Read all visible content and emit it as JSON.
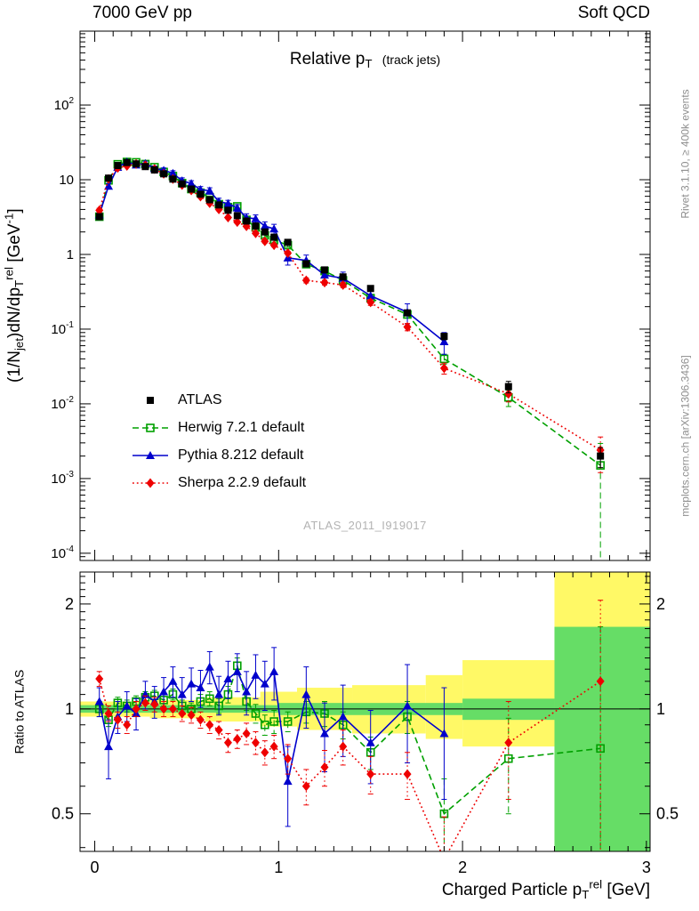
{
  "header": {
    "left": "7000 GeV pp",
    "right": "Soft QCD"
  },
  "title": {
    "text": "Relative p_{T}",
    "suffix": "(track jets)"
  },
  "axes": {
    "x_label": "Charged Particle p_{T}^{rel} [GeV]",
    "y_label_main": "(1/N_{jet})dN/dp_{T}^{rel} [GeV^{-1}]",
    "y_label_ratio": "Ratio to ATLAS"
  },
  "side_notes": {
    "top": "Rivet 3.1.10, ≥ 400k events",
    "bottom": "mcplots.cern.ch [arXiv:1306.3436]"
  },
  "watermark": "ATLAS_2011_I919017",
  "chart_data": [
    {
      "type": "scatter",
      "panel": "main",
      "title": "Relative pT (track jets)",
      "xlim": [
        -0.08,
        3.02
      ],
      "ylim": [
        8e-05,
        975
      ],
      "yscale": "log",
      "x": [
        0.025,
        0.075,
        0.125,
        0.175,
        0.225,
        0.275,
        0.325,
        0.375,
        0.425,
        0.475,
        0.525,
        0.575,
        0.625,
        0.675,
        0.725,
        0.775,
        0.825,
        0.875,
        0.925,
        0.975,
        1.05,
        1.15,
        1.25,
        1.35,
        1.5,
        1.7,
        1.9,
        2.25,
        2.75
      ],
      "series": [
        {
          "name": "ATLAS",
          "color": "#000000",
          "marker": "square-filled",
          "line": "none",
          "y": [
            3.2,
            10.5,
            15.5,
            17.0,
            16.3,
            15.0,
            13.5,
            12.0,
            10.2,
            8.8,
            7.5,
            6.4,
            5.4,
            4.6,
            3.9,
            3.3,
            2.8,
            2.4,
            2.0,
            1.7,
            1.45,
            0.75,
            0.62,
            0.5,
            0.35,
            0.165,
            0.08,
            0.017,
            0.002
          ],
          "yerr": [
            0.2,
            0.5,
            0.6,
            0.6,
            0.6,
            0.55,
            0.5,
            0.45,
            0.4,
            0.35,
            0.3,
            0.25,
            0.22,
            0.18,
            0.16,
            0.13,
            0.11,
            0.1,
            0.08,
            0.07,
            0.06,
            0.04,
            0.035,
            0.03,
            0.025,
            0.013,
            0.008,
            0.003,
            0.0006
          ]
        },
        {
          "name": "Herwig 7.2.1 default",
          "color": "#00A000",
          "marker": "square-open",
          "line": "dash",
          "y": [
            3.2,
            9.8,
            16.1,
            17.3,
            17.1,
            16.2,
            14.7,
            12.7,
            11.2,
            9.0,
            7.5,
            6.7,
            5.8,
            4.7,
            4.3,
            4.4,
            2.9,
            2.3,
            1.8,
            1.56,
            1.33,
            0.74,
            0.6,
            0.45,
            0.26,
            0.157,
            0.04,
            0.0122,
            0.0015
          ],
          "yerr": [
            0.12,
            0.35,
            0.5,
            0.55,
            0.55,
            0.5,
            0.5,
            0.45,
            0.4,
            0.35,
            0.3,
            0.3,
            0.25,
            0.22,
            0.2,
            0.22,
            0.16,
            0.13,
            0.11,
            0.1,
            0.08,
            0.05,
            0.045,
            0.035,
            0.025,
            0.015,
            0.006,
            0.003,
            0.00145
          ]
        },
        {
          "name": "Pythia 8.212 default",
          "color": "#0000CC",
          "marker": "triangle-filled",
          "line": "solid",
          "y": [
            3.4,
            8.2,
            14.7,
            17.3,
            15.8,
            16.5,
            14.2,
            13.4,
            12.2,
            9.7,
            8.9,
            7.4,
            7.1,
            5.1,
            4.8,
            4.2,
            3.1,
            3.0,
            2.4,
            2.2,
            0.9,
            0.83,
            0.53,
            0.48,
            0.28,
            0.168,
            0.068
          ],
          "yerr": [
            0.25,
            0.7,
            1.1,
            1.2,
            1.2,
            1.2,
            1.1,
            1.0,
            1.0,
            0.9,
            0.8,
            0.7,
            0.7,
            0.55,
            0.5,
            0.45,
            0.4,
            0.38,
            0.33,
            0.33,
            0.18,
            0.15,
            0.1,
            0.1,
            0.06,
            0.05,
            0.022
          ]
        },
        {
          "name": "Sherpa 2.2.9 default",
          "color": "#EE0000",
          "marker": "diamond-filled",
          "line": "dot",
          "y": [
            3.9,
            10.2,
            14.4,
            15.3,
            16.3,
            15.6,
            13.9,
            12.0,
            10.2,
            8.5,
            7.2,
            5.95,
            4.86,
            4.0,
            3.12,
            2.71,
            2.38,
            1.92,
            1.5,
            1.33,
            1.04,
            0.45,
            0.42,
            0.39,
            0.228,
            0.107,
            0.03,
            0.0136,
            0.0024
          ],
          "yerr": [
            0.25,
            0.45,
            0.55,
            0.55,
            0.55,
            0.5,
            0.45,
            0.4,
            0.35,
            0.3,
            0.26,
            0.22,
            0.19,
            0.16,
            0.13,
            0.12,
            0.1,
            0.09,
            0.08,
            0.07,
            0.06,
            0.035,
            0.03,
            0.03,
            0.02,
            0.012,
            0.005,
            0.003,
            0.0012
          ]
        }
      ]
    },
    {
      "type": "ratio",
      "panel": "ratio",
      "ylim": [
        0.39,
        2.47
      ],
      "yscale": "log",
      "yticks": [
        0.5,
        1,
        2
      ],
      "reference": 1,
      "x": [
        0.025,
        0.075,
        0.125,
        0.175,
        0.225,
        0.275,
        0.325,
        0.375,
        0.425,
        0.475,
        0.525,
        0.575,
        0.625,
        0.675,
        0.725,
        0.775,
        0.825,
        0.875,
        0.925,
        0.975,
        1.05,
        1.15,
        1.25,
        1.35,
        1.5,
        1.7,
        1.9,
        2.25,
        2.75
      ],
      "bands": {
        "yellow": {
          "color": "#FFF966",
          "segments": [
            {
              "x0": -0.08,
              "x1": 0.3,
              "lo": 0.95,
              "hi": 1.05
            },
            {
              "x0": 0.3,
              "x1": 0.6,
              "lo": 0.94,
              "hi": 1.06
            },
            {
              "x0": 0.6,
              "x1": 0.9,
              "lo": 0.92,
              "hi": 1.08
            },
            {
              "x0": 0.9,
              "x1": 1.1,
              "lo": 0.89,
              "hi": 1.12
            },
            {
              "x0": 1.1,
              "x1": 1.4,
              "lo": 0.87,
              "hi": 1.15
            },
            {
              "x0": 1.4,
              "x1": 1.8,
              "lo": 0.85,
              "hi": 1.17
            },
            {
              "x0": 1.8,
              "x1": 2.0,
              "lo": 0.82,
              "hi": 1.25
            },
            {
              "x0": 2.0,
              "x1": 2.5,
              "lo": 0.78,
              "hi": 1.38
            },
            {
              "x0": 2.5,
              "x1": 3.02,
              "lo": 0.3,
              "hi": 2.6
            }
          ]
        },
        "green": {
          "color": "#66DD66",
          "segments": [
            {
              "x0": -0.08,
              "x1": 1.0,
              "lo": 0.975,
              "hi": 1.025
            },
            {
              "x0": 1.0,
              "x1": 2.0,
              "lo": 0.96,
              "hi": 1.04
            },
            {
              "x0": 2.0,
              "x1": 2.5,
              "lo": 0.93,
              "hi": 1.07
            },
            {
              "x0": 2.5,
              "x1": 3.02,
              "lo": 0.3,
              "hi": 1.72
            }
          ]
        }
      },
      "series": [
        {
          "name": "Herwig 7.2.1 default",
          "color": "#00A000",
          "marker": "square-open",
          "line": "dash",
          "y": [
            1.0,
            0.93,
            1.04,
            1.02,
            1.05,
            1.08,
            1.09,
            1.06,
            1.1,
            1.02,
            1.0,
            1.05,
            1.07,
            1.02,
            1.1,
            1.33,
            1.05,
            0.97,
            0.9,
            0.92,
            0.92,
            0.98,
            0.97,
            0.9,
            0.75,
            0.95,
            0.5,
            0.72,
            0.77
          ],
          "yerr": [
            0.05,
            0.04,
            0.04,
            0.04,
            0.04,
            0.04,
            0.04,
            0.04,
            0.04,
            0.04,
            0.04,
            0.05,
            0.05,
            0.05,
            0.06,
            0.07,
            0.06,
            0.06,
            0.06,
            0.07,
            0.06,
            0.07,
            0.08,
            0.08,
            0.08,
            0.1,
            0.13,
            0.22,
            0.95
          ]
        },
        {
          "name": "Pythia 8.212 default",
          "color": "#0000CC",
          "marker": "triangle-filled",
          "line": "solid",
          "y": [
            1.05,
            0.78,
            0.95,
            1.02,
            0.97,
            1.1,
            1.05,
            1.12,
            1.2,
            1.1,
            1.18,
            1.15,
            1.32,
            1.1,
            1.22,
            1.28,
            1.12,
            1.25,
            1.18,
            1.28,
            0.62,
            1.1,
            0.85,
            0.95,
            0.8,
            1.02,
            0.85
          ],
          "yerr": [
            0.1,
            0.15,
            0.1,
            0.1,
            0.1,
            0.1,
            0.11,
            0.11,
            0.12,
            0.13,
            0.13,
            0.14,
            0.14,
            0.14,
            0.15,
            0.16,
            0.16,
            0.18,
            0.19,
            0.22,
            0.16,
            0.22,
            0.19,
            0.22,
            0.19,
            0.32,
            0.3
          ]
        },
        {
          "name": "Sherpa 2.2.9 default",
          "color": "#EE0000",
          "marker": "diamond-filled",
          "line": "dot",
          "y": [
            1.22,
            0.97,
            0.93,
            0.9,
            1.0,
            1.04,
            1.03,
            1.0,
            1.0,
            0.97,
            0.96,
            0.93,
            0.9,
            0.87,
            0.8,
            0.82,
            0.85,
            0.8,
            0.75,
            0.78,
            0.72,
            0.6,
            0.68,
            0.78,
            0.65,
            0.65,
            0.37,
            0.8,
            1.2
          ],
          "yerr": [
            0.06,
            0.05,
            0.05,
            0.05,
            0.05,
            0.05,
            0.05,
            0.05,
            0.05,
            0.05,
            0.05,
            0.05,
            0.05,
            0.05,
            0.05,
            0.05,
            0.06,
            0.06,
            0.06,
            0.06,
            0.07,
            0.07,
            0.08,
            0.09,
            0.08,
            0.1,
            0.12,
            0.25,
            0.85
          ]
        }
      ]
    }
  ]
}
